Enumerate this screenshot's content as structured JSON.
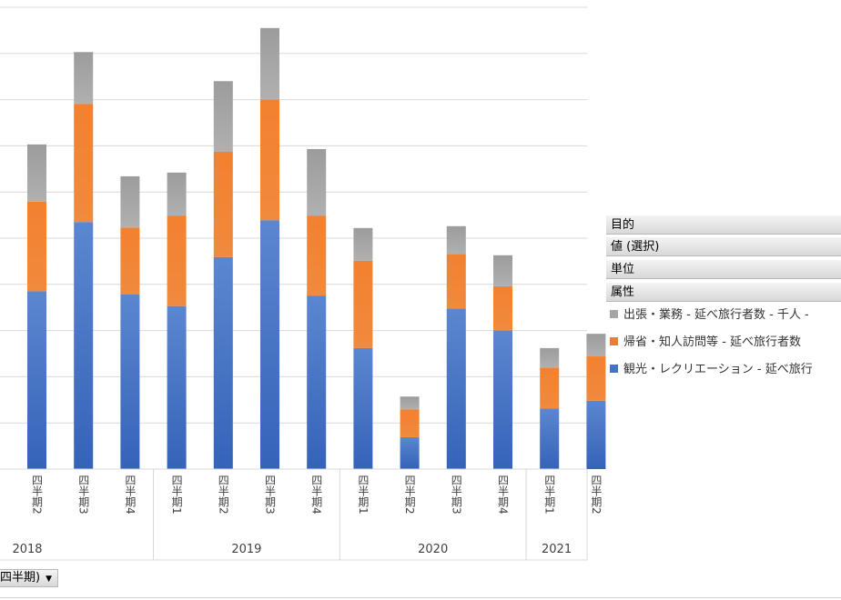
{
  "chart_data": {
    "type": "bar",
    "stacked": true,
    "title": "",
    "categories": [
      "四半期2",
      "四半期3",
      "四半期4",
      "四半期1",
      "四半期2",
      "四半期3",
      "四半期4",
      "四半期1",
      "四半期2",
      "四半期3",
      "四半期4",
      "四半期1",
      "四半期2"
    ],
    "years": [
      {
        "label": "2018",
        "count": 3
      },
      {
        "label": "2019",
        "count": 4
      },
      {
        "label": "2020",
        "count": 4
      },
      {
        "label": "2021",
        "count": 2
      }
    ],
    "ylim": [
      0,
      100
    ],
    "grid": true,
    "series": [
      {
        "name": "観光・レクリエーション - 延べ旅行者数",
        "color": "#4472c4",
        "values": [
          38.5,
          53.5,
          37.8,
          35.3,
          45.9,
          53.9,
          37.5,
          26.2,
          6.9,
          34.8,
          30.0,
          13.1,
          14.8
        ]
      },
      {
        "name": "帰省・知人訪問等 - 延べ旅行者数",
        "color": "#ed7d31",
        "values": [
          19.4,
          25.6,
          14.5,
          19.6,
          22.8,
          26.1,
          17.4,
          18.9,
          6.0,
          11.8,
          9.6,
          8.9,
          9.6
        ]
      },
      {
        "name": "出張・業務 - 延べ旅行者数 - 千人",
        "color": "#a5a5a5",
        "values": [
          12.4,
          11.2,
          11.1,
          9.3,
          15.3,
          15.5,
          14.4,
          7.1,
          2.8,
          6.0,
          6.7,
          4.2,
          4.9
        ]
      }
    ]
  },
  "field_buttons": [
    "目的",
    "値 (選択)",
    "単位",
    "属性"
  ],
  "legend": [
    {
      "label": "出張・業務 - 延べ旅行者数 - 千人 - ",
      "color": "#a5a5a5"
    },
    {
      "label": "帰省・知人訪問等 - 延べ旅行者数",
      "color": "#ed7d31"
    },
    {
      "label": "観光・レクリエーション - 延べ旅行",
      "color": "#4472c4"
    }
  ],
  "axis_field_button": {
    "label": "四半期)",
    "arrow": "▼"
  }
}
